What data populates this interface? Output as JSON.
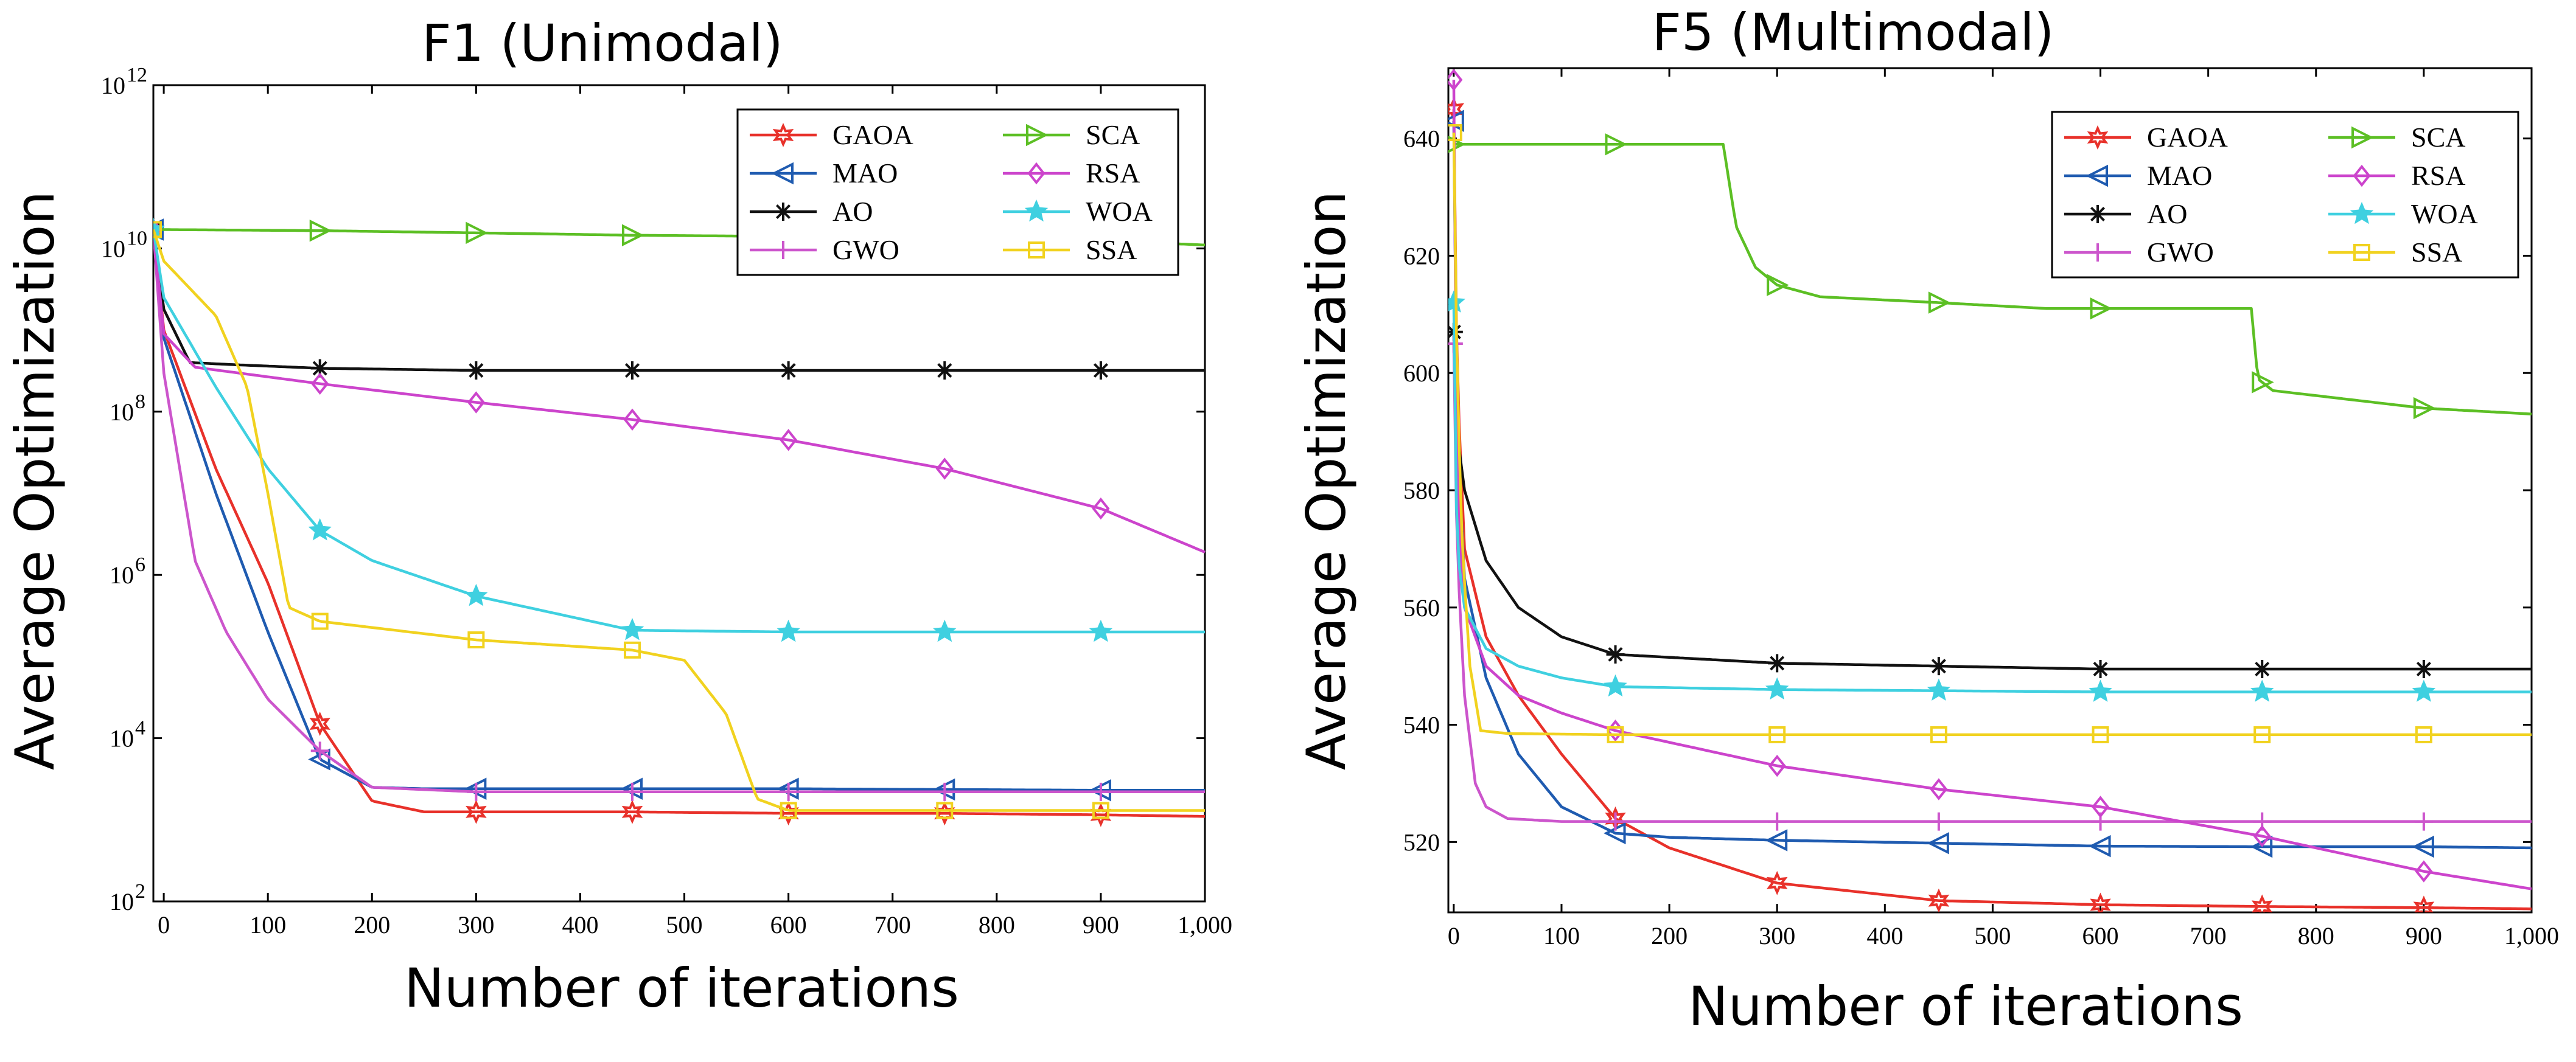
{
  "chart_data": [
    {
      "type": "line",
      "title": "F1 (Unimodal)",
      "xlabel": "Number of iterations",
      "ylabel": "Average Optimization",
      "yscale": "log",
      "xlim": [
        -10,
        1000
      ],
      "ylim": [
        100,
        1000000000000
      ],
      "xticks": [
        0,
        100,
        200,
        300,
        400,
        500,
        600,
        700,
        800,
        900,
        1000
      ],
      "xtick_labels": [
        "0",
        "100",
        "200",
        "300",
        "400",
        "500",
        "600",
        "700",
        "800",
        "900",
        "1,000"
      ],
      "yticks": [
        100,
        10000,
        1000000,
        100000000,
        10000000000,
        1000000000000
      ],
      "ytick_labels": [
        {
          "base": "10",
          "exp": "2"
        },
        {
          "base": "10",
          "exp": "4"
        },
        {
          "base": "10",
          "exp": "6"
        },
        {
          "base": "10",
          "exp": "8"
        },
        {
          "base": "10",
          "exp": "10"
        },
        {
          "base": "10",
          "exp": "12"
        }
      ],
      "legend_position": "top-right",
      "series": [
        {
          "name": "GAOA",
          "color": "#e8312a",
          "marker": "hexstar",
          "x": [
            -10,
            0,
            50,
            100,
            150,
            200,
            250,
            300,
            450,
            600,
            750,
            900,
            1000
          ],
          "y": [
            17000000000,
            1000000000,
            20000000,
            800000,
            15000,
            1700,
            1250,
            1250,
            1250,
            1200,
            1200,
            1150,
            1100
          ]
        },
        {
          "name": "MAO",
          "color": "#1f5bb0",
          "marker": "triangle-left",
          "x": [
            -10,
            0,
            50,
            100,
            150,
            200,
            250,
            300,
            450,
            600,
            750,
            900,
            1000
          ],
          "y": [
            17000000000,
            800000000,
            10000000,
            200000,
            5500,
            2500,
            2400,
            2400,
            2400,
            2400,
            2350,
            2300,
            2300
          ]
        },
        {
          "name": "AO",
          "color": "#111111",
          "marker": "asterisk",
          "x": [
            -10,
            0,
            25,
            60,
            150,
            300,
            450,
            600,
            750,
            900,
            1000
          ],
          "y": [
            17000000000,
            1800000000,
            400000000,
            380000000,
            340000000,
            320000000,
            320000000,
            320000000,
            320000000,
            320000000,
            320000000
          ]
        },
        {
          "name": "GWO",
          "color": "#cc55cc",
          "marker": "plus",
          "x": [
            -10,
            0,
            30,
            60,
            100,
            150,
            200,
            300,
            450,
            600,
            750,
            900,
            1000
          ],
          "y": [
            17000000000,
            300000000,
            1500000,
            200000,
            30000,
            7000,
            2500,
            2200,
            2200,
            2200,
            2200,
            2200,
            2200
          ]
        },
        {
          "name": "SCA",
          "color": "#5cbf24",
          "marker": "triangle-right",
          "x": [
            -10,
            0,
            150,
            300,
            450,
            600,
            750,
            900,
            1000
          ],
          "y": [
            17000000000,
            17000000000,
            16500000000,
            15500000000,
            14500000000,
            14000000000,
            13500000000,
            12500000000,
            11000000000
          ]
        },
        {
          "name": "RSA",
          "color": "#cc44cc",
          "marker": "diamond",
          "x": [
            -10,
            0,
            30,
            150,
            300,
            450,
            600,
            750,
            900,
            1000
          ],
          "y": [
            17000000000,
            900000000,
            350000000,
            220000000,
            130000000,
            80000000,
            45000000,
            20000000,
            6500000,
            1900000
          ]
        },
        {
          "name": "WOA",
          "color": "#3fd0e0",
          "marker": "star",
          "x": [
            -10,
            0,
            50,
            100,
            150,
            200,
            300,
            450,
            600,
            750,
            900,
            1000
          ],
          "y": [
            17000000000,
            2500000000,
            200000000,
            20000000,
            3500000,
            1500000,
            550000,
            210000,
            200000,
            200000,
            200000,
            200000
          ]
        },
        {
          "name": "SSA",
          "color": "#f1d21f",
          "marker": "square",
          "x": [
            -10,
            0,
            50,
            80,
            100,
            120,
            150,
            300,
            450,
            500,
            540,
            570,
            600,
            750,
            900,
            1000
          ],
          "y": [
            17000000000,
            7000000000,
            1500000000,
            200000000,
            10000000,
            400000,
            270000,
            160000,
            120000,
            90000,
            20000,
            1800,
            1300,
            1300,
            1300,
            1300
          ]
        }
      ]
    },
    {
      "type": "line",
      "title": "F5 (Multimodal)",
      "xlabel": "Number of iterations",
      "ylabel": "Average Optimization",
      "yscale": "linear",
      "xlim": [
        -5,
        1000
      ],
      "ylim": [
        508,
        652
      ],
      "xticks": [
        0,
        100,
        200,
        300,
        400,
        500,
        600,
        700,
        800,
        900,
        1000
      ],
      "xtick_labels": [
        "0",
        "100",
        "200",
        "300",
        "400",
        "500",
        "600",
        "700",
        "800",
        "900",
        "1,000"
      ],
      "yticks": [
        520,
        540,
        560,
        580,
        600,
        620,
        640
      ],
      "ytick_labels": [
        "520",
        "540",
        "560",
        "580",
        "600",
        "620",
        "640"
      ],
      "legend_position": "top-right",
      "series": [
        {
          "name": "GAOA",
          "color": "#e8312a",
          "marker": "hexstar",
          "x": [
            0,
            3,
            10,
            30,
            60,
            100,
            150,
            200,
            300,
            450,
            600,
            750,
            900,
            1000
          ],
          "y": [
            645,
            600,
            570,
            555,
            545,
            535,
            524,
            519,
            513,
            510,
            509.3,
            509,
            508.8,
            508.6
          ]
        },
        {
          "name": "MAO",
          "color": "#1f5bb0",
          "marker": "triangle-left",
          "x": [
            0,
            3,
            10,
            30,
            60,
            100,
            150,
            200,
            300,
            450,
            600,
            750,
            900,
            1000
          ],
          "y": [
            643,
            590,
            565,
            548,
            535,
            526,
            521.5,
            520.8,
            520.3,
            519.8,
            519.3,
            519.2,
            519.2,
            519
          ]
        },
        {
          "name": "AO",
          "color": "#111111",
          "marker": "asterisk",
          "x": [
            0,
            3,
            10,
            30,
            60,
            100,
            150,
            300,
            450,
            600,
            750,
            900,
            1000
          ],
          "y": [
            607,
            590,
            580,
            568,
            560,
            555,
            552,
            550.5,
            550,
            549.5,
            549.5,
            549.5,
            549.5
          ]
        },
        {
          "name": "GWO",
          "color": "#cc55cc",
          "marker": "plus",
          "x": [
            0,
            3,
            10,
            20,
            30,
            50,
            100,
            150,
            300,
            450,
            600,
            750,
            900,
            1000
          ],
          "y": [
            605,
            570,
            545,
            530,
            526,
            524,
            523.5,
            523.5,
            523.5,
            523.5,
            523.5,
            523.5,
            523.5,
            523.5
          ]
        },
        {
          "name": "SCA",
          "color": "#5cbf24",
          "marker": "triangle-right",
          "x": [
            0,
            150,
            250,
            262,
            280,
            300,
            340,
            450,
            550,
            600,
            740,
            746,
            760,
            900,
            1000
          ],
          "y": [
            639,
            639,
            639,
            625,
            618,
            615,
            613,
            612,
            611,
            611,
            611,
            599,
            597,
            594,
            593
          ]
        },
        {
          "name": "RSA",
          "color": "#cc44cc",
          "marker": "diamond",
          "x": [
            0,
            3,
            10,
            30,
            60,
            100,
            150,
            300,
            450,
            600,
            750,
            900,
            1000
          ],
          "y": [
            650,
            580,
            560,
            550,
            545,
            542,
            539,
            533,
            529,
            526,
            521,
            515,
            512
          ]
        },
        {
          "name": "WOA",
          "color": "#3fd0e0",
          "marker": "star",
          "x": [
            0,
            3,
            10,
            30,
            60,
            100,
            150,
            300,
            450,
            600,
            750,
            900,
            1000
          ],
          "y": [
            612,
            570,
            560,
            553,
            550,
            548,
            546.5,
            546,
            545.8,
            545.6,
            545.6,
            545.6,
            545.6
          ]
        },
        {
          "name": "SSA",
          "color": "#f1d21f",
          "marker": "square",
          "x": [
            0,
            3,
            8,
            15,
            25,
            50,
            150,
            300,
            450,
            600,
            750,
            900,
            1000
          ],
          "y": [
            641,
            600,
            570,
            550,
            539,
            538.5,
            538.3,
            538.3,
            538.3,
            538.3,
            538.3,
            538.3,
            538.3
          ]
        }
      ]
    }
  ]
}
